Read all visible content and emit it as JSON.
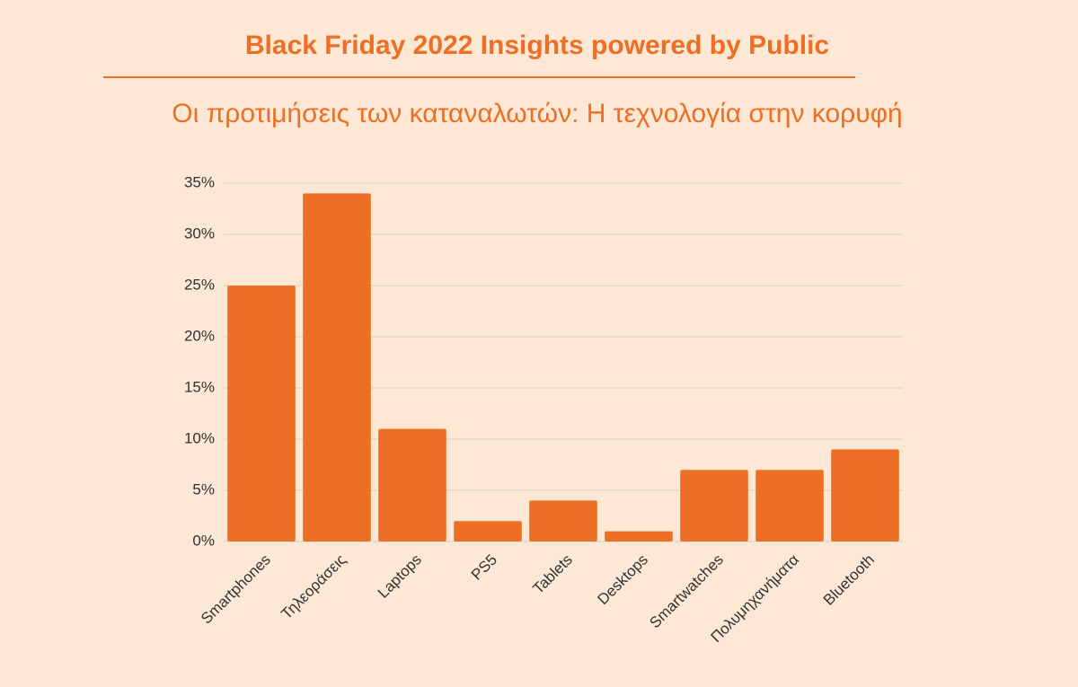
{
  "chart_data": {
    "type": "bar",
    "title": "Black Friday 2022 Insights powered by Public",
    "subtitle": "Οι προτιμήσεις των καταναλωτών: Η τεχνολογία στην κορυφή",
    "categories": [
      "Smartphones",
      "Τηλεοράσεις",
      "Laptops",
      "PS5",
      "Tablets",
      "Desktops",
      "Smartwatches",
      "Πολυμηχανήματα",
      "Bluetooth"
    ],
    "values": [
      25,
      34,
      11,
      2,
      4,
      1,
      7,
      7,
      9
    ],
    "color": "#ec6f25",
    "ylim": [
      0,
      35
    ],
    "yticks": [
      {
        "value": 0,
        "label": "0%"
      },
      {
        "value": 5,
        "label": "5%"
      },
      {
        "value": 10,
        "label": "10%"
      },
      {
        "value": 15,
        "label": "15%"
      },
      {
        "value": 20,
        "label": "20%"
      },
      {
        "value": 25,
        "label": "25%"
      },
      {
        "value": 30,
        "label": "30%"
      },
      {
        "value": 35,
        "label": "35%"
      }
    ],
    "grid": true
  }
}
